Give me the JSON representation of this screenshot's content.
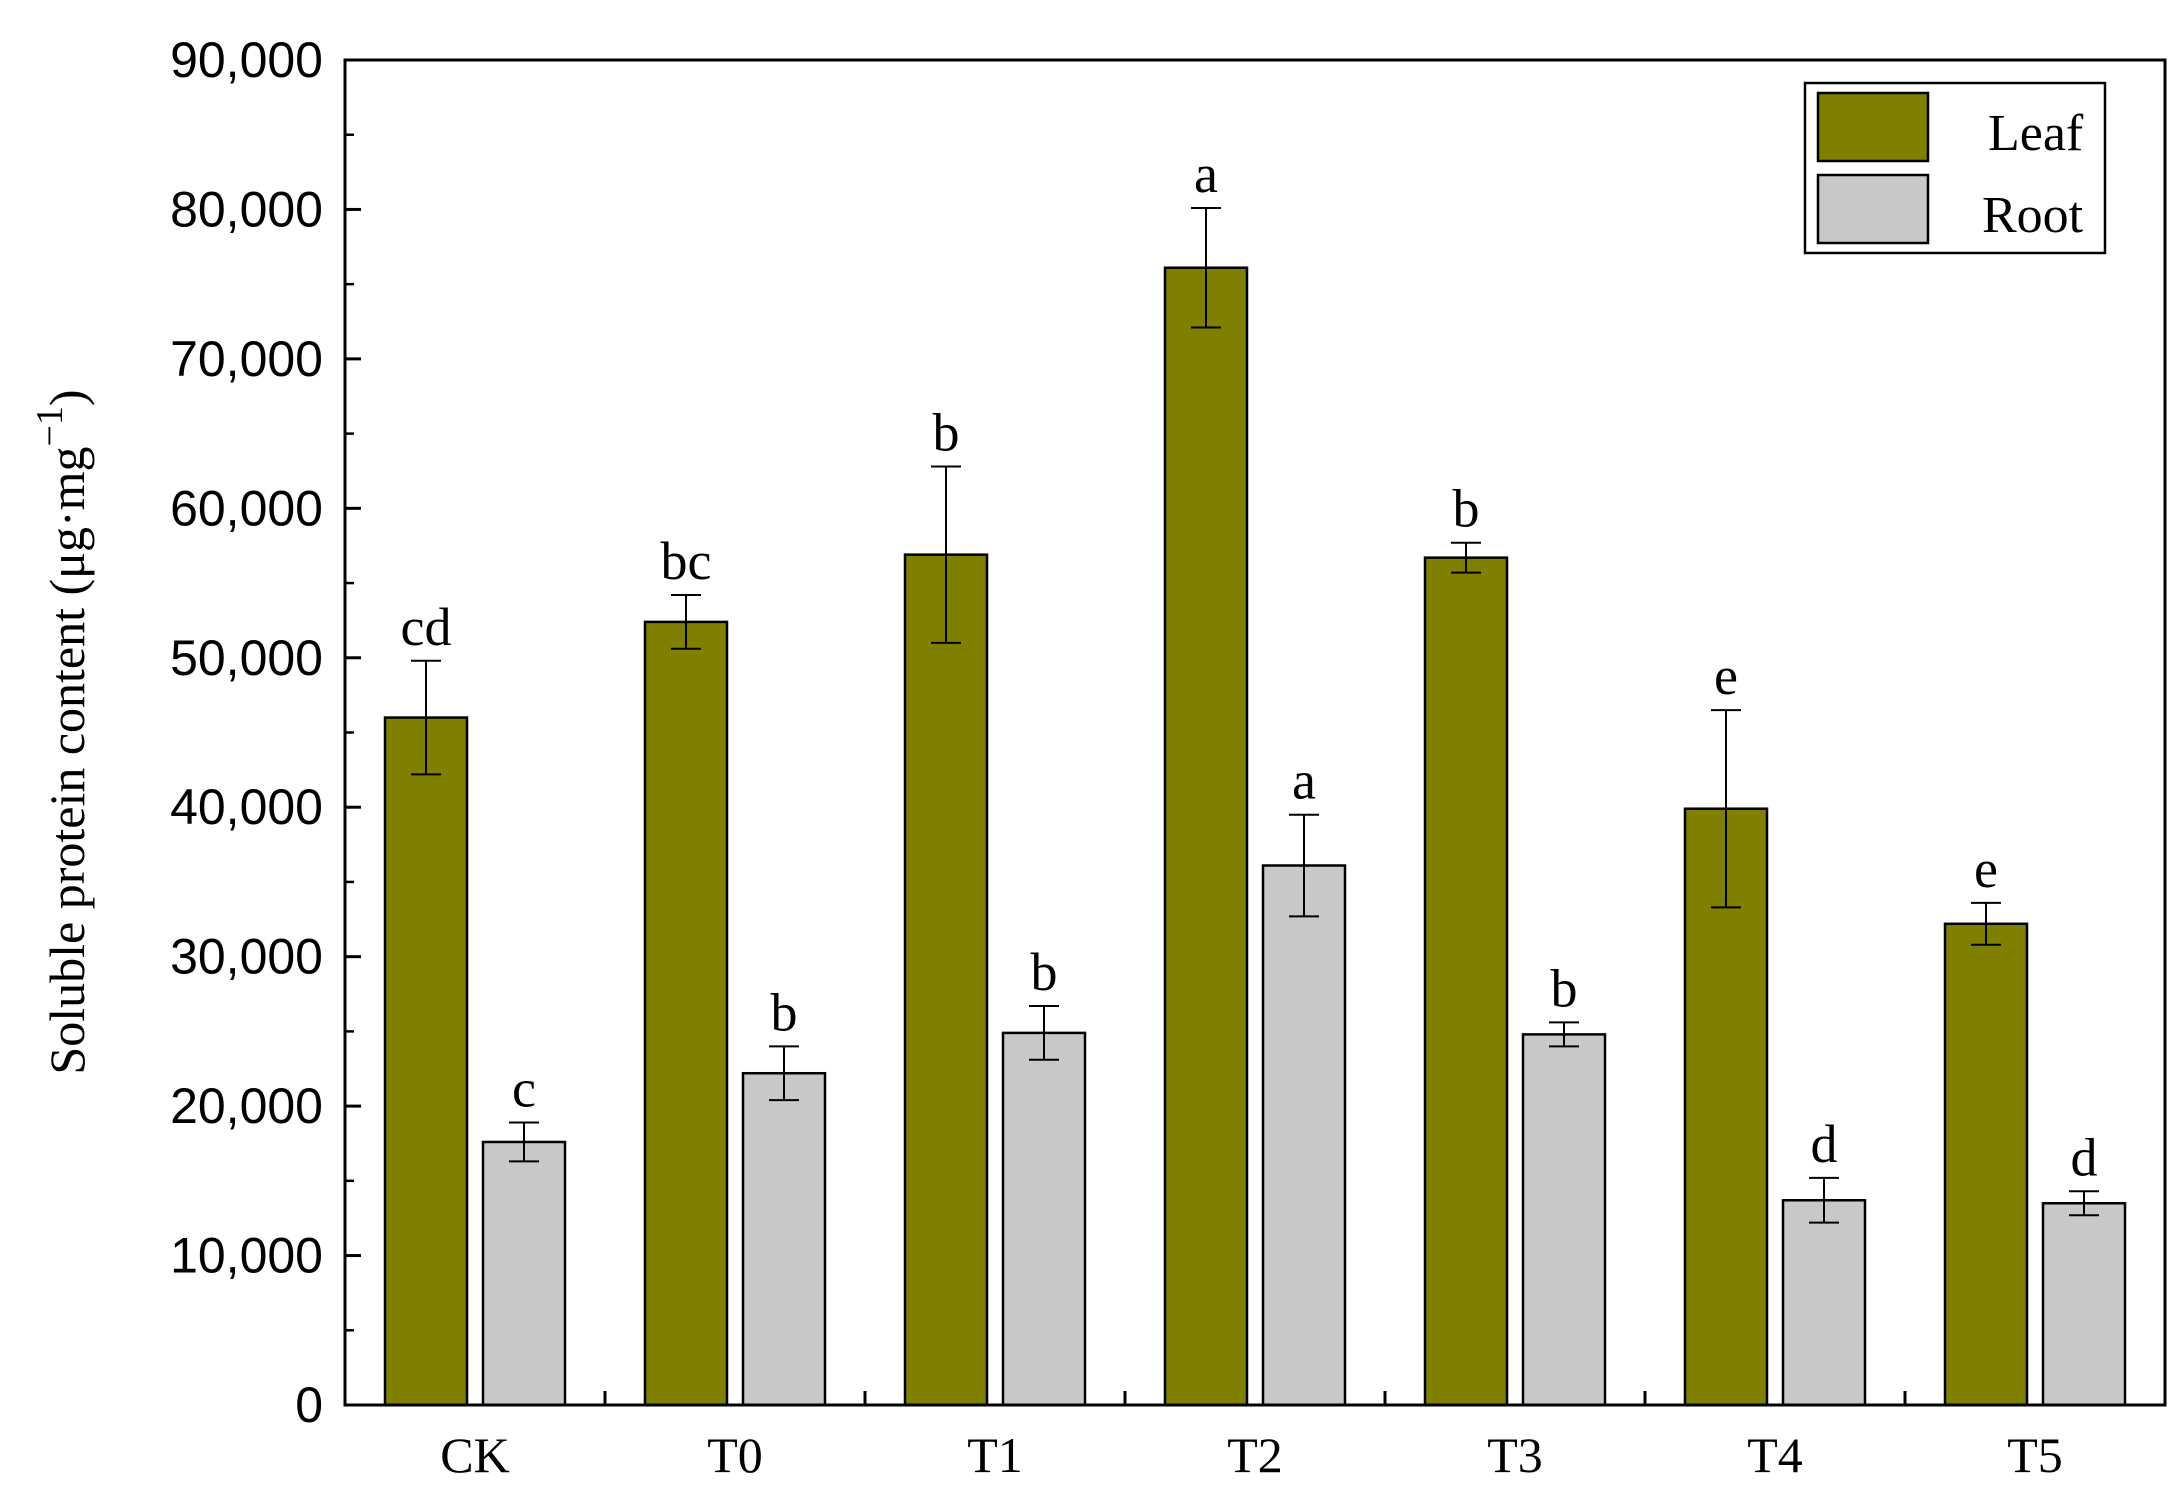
{
  "chart_data": {
    "type": "bar",
    "title": "",
    "xlabel": "",
    "ylabel": "Soluble protein content (μg·mg",
    "ylabel_superscript": "−1",
    "ylabel_close": ")",
    "ylim": [
      0,
      90000
    ],
    "yticks": [
      0,
      10000,
      20000,
      30000,
      40000,
      50000,
      60000,
      70000,
      80000,
      90000
    ],
    "ytick_labels": [
      "0",
      "10,000",
      "20,000",
      "30,000",
      "40,000",
      "50,000",
      "60,000",
      "70,000",
      "80,000",
      "90,000"
    ],
    "categories": [
      "CK",
      "T0",
      "T1",
      "T2",
      "T3",
      "T4",
      "T5"
    ],
    "legend_position": "top-right",
    "series": [
      {
        "name": "Leaf",
        "color": "#808000",
        "values": [
          46000,
          52400,
          56900,
          76100,
          56700,
          39900,
          32200
        ],
        "errors": [
          3800,
          1800,
          5900,
          4000,
          1000,
          6600,
          1400
        ],
        "letters": [
          "cd",
          "bc",
          "b",
          "a",
          "b",
          "e",
          "e"
        ]
      },
      {
        "name": "Root",
        "color": "#c8c8c8",
        "values": [
          17600,
          22200,
          24900,
          36100,
          24800,
          13700,
          13500
        ],
        "errors": [
          1300,
          1800,
          1800,
          3400,
          800,
          1500,
          800
        ],
        "letters": [
          "c",
          "b",
          "b",
          "a",
          "b",
          "d",
          "d"
        ]
      }
    ]
  }
}
